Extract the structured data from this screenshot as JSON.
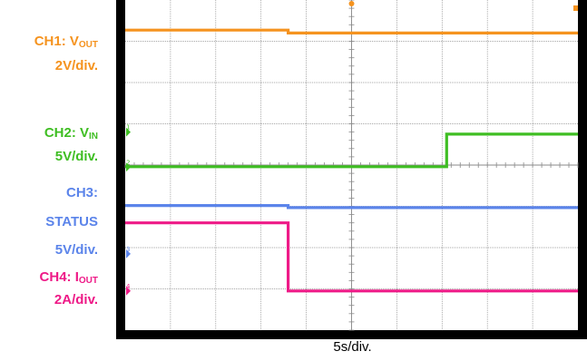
{
  "labels": {
    "ch1_prefix": "CH1: V",
    "ch1_sub": "OUT",
    "ch1_scale": "2V/div.",
    "ch2_prefix": "CH2: V",
    "ch2_sub": "IN",
    "ch2_scale": "5V/div.",
    "ch3_name": "CH3:",
    "ch3_signal": "STATUS",
    "ch3_scale": "5V/div.",
    "ch4_prefix": "CH4: I",
    "ch4_sub": "OUT",
    "ch4_scale": "2A/div.",
    "timebase": "5s/div."
  },
  "colors": {
    "ch1": "#f5931f",
    "ch2": "#3fbe23",
    "ch3": "#5b84ea",
    "ch4": "#ee1a87",
    "screen_bg": "#ffffff",
    "frame": "#000000",
    "grid": "#8a8a8a"
  },
  "chart_data": {
    "type": "line",
    "title": "",
    "xlabel": "5s/div.",
    "x_divisions": 10,
    "y_divisions": 8,
    "xlim": [
      0,
      10
    ],
    "ylim": [
      0,
      8
    ],
    "grid": true,
    "series": [
      {
        "name": "CH1: VOUT",
        "color_key": "ch1",
        "x": [
          0,
          3.6,
          3.6,
          10
        ],
        "y": [
          7.27,
          7.27,
          7.2,
          7.2
        ]
      },
      {
        "name": "CH2: VIN",
        "color_key": "ch2",
        "x": [
          0,
          7.1,
          7.1,
          10
        ],
        "y": [
          3.96,
          3.96,
          4.75,
          4.75
        ]
      },
      {
        "name": "CH3: STATUS",
        "color_key": "ch3",
        "x": [
          0,
          3.6,
          3.6,
          10
        ],
        "y": [
          3.02,
          3.02,
          2.97,
          2.97
        ]
      },
      {
        "name": "CH4: IOUT",
        "color_key": "ch4",
        "x": [
          0,
          3.6,
          3.6,
          10
        ],
        "y": [
          2.6,
          2.6,
          0.95,
          0.95
        ]
      }
    ],
    "ground_markers": [
      {
        "label": "1",
        "color_key": "ch2",
        "level": 4.8
      },
      {
        "label": "2",
        "color_key": "ch2",
        "level": 3.95
      },
      {
        "label": "3",
        "color_key": "ch3",
        "level": 1.85
      },
      {
        "label": "4",
        "color_key": "ch4",
        "level": 0.95
      }
    ]
  }
}
